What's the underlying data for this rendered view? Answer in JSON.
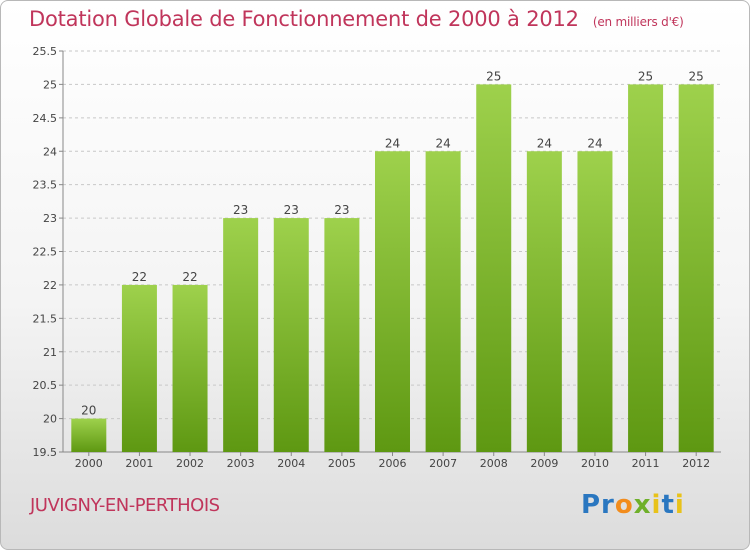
{
  "title": "Dotation Globale de Fonctionnement de 2000 à 2012",
  "subtitle": "(en milliers d'€)",
  "commune": "JUVIGNY-EN-PERTHOIS",
  "logo": "Proxiti",
  "colors": {
    "title": "#c0355b",
    "bar_light": "#9ed14c",
    "bar_dark": "#5e9812",
    "grid": "#c8c8c8"
  },
  "chart_data": {
    "type": "bar",
    "title": "Dotation Globale de Fonctionnement de 2000 à 2012",
    "xlabel": "",
    "ylabel": "(en milliers d'€)",
    "categories": [
      "2000",
      "2001",
      "2002",
      "2003",
      "2004",
      "2005",
      "2006",
      "2007",
      "2008",
      "2009",
      "2010",
      "2011",
      "2012"
    ],
    "values": [
      20,
      22,
      22,
      23,
      23,
      23,
      24,
      24,
      25,
      24,
      24,
      25,
      25
    ],
    "ylim": [
      19.5,
      25.5
    ],
    "yticks": [
      19.5,
      20,
      20.5,
      21,
      21.5,
      22,
      22.5,
      23,
      23.5,
      24,
      24.5,
      25,
      25.5
    ],
    "ytick_labels": [
      "19.5",
      "20",
      "20.5",
      "21",
      "21.5",
      "22",
      "22.5",
      "23",
      "23.5",
      "24",
      "24.5",
      "25",
      "25.5"
    ],
    "grid": true
  }
}
